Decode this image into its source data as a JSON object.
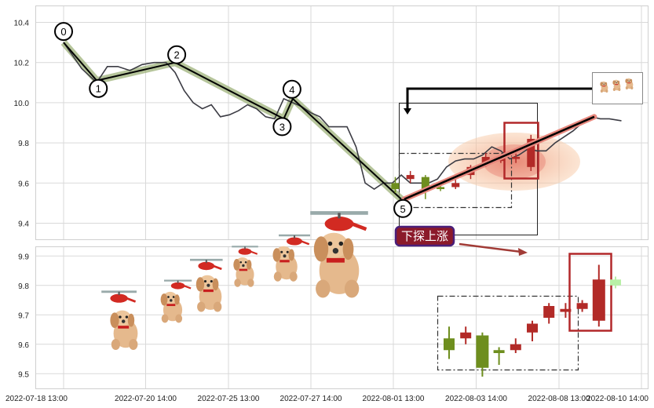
{
  "chart_data": [
    {
      "type": "line",
      "panel": "top",
      "ylim": [
        9.32,
        10.48
      ],
      "yticks": [
        9.4,
        9.6,
        9.8,
        10.0,
        10.2,
        10.4
      ],
      "grid": true,
      "series": [
        {
          "style": "dark-gray-line",
          "x": [
            0,
            0.6,
            1.1,
            1.45,
            1.8,
            2.2,
            2.6,
            3.0,
            3.4,
            3.7,
            4.0,
            4.3,
            4.6,
            4.9,
            5.2,
            5.5,
            5.8,
            6.1,
            6.4,
            6.7,
            7.0,
            7.3,
            7.6,
            7.9,
            8.2,
            8.5,
            8.8,
            9.1,
            9.4,
            9.7,
            10.0,
            10.3,
            10.6,
            10.9,
            11.2,
            11.5,
            11.8,
            12.1,
            12.4,
            12.7,
            13.0,
            13.3,
            13.6,
            13.9,
            14.2,
            14.5,
            14.8,
            15.1,
            15.4,
            15.7,
            16.0,
            16.3,
            16.6,
            16.9,
            17.2,
            17.5,
            17.8,
            18.1,
            18.5
          ],
          "y": [
            10.3,
            10.17,
            10.1,
            10.18,
            10.18,
            10.16,
            10.19,
            10.2,
            10.2,
            10.15,
            10.06,
            10.0,
            9.97,
            9.99,
            9.93,
            9.94,
            9.96,
            9.99,
            9.97,
            9.93,
            9.92,
            10.02,
            10.0,
            9.98,
            9.95,
            9.93,
            9.88,
            9.88,
            9.88,
            9.78,
            9.6,
            9.57,
            9.6,
            9.6,
            9.64,
            9.6,
            9.6,
            9.6,
            9.62,
            9.68,
            9.71,
            9.72,
            9.72,
            9.74,
            9.78,
            9.76,
            9.72,
            9.74,
            9.77,
            9.76,
            9.76,
            9.8,
            9.83,
            9.86,
            9.9,
            9.93,
            9.92,
            9.92,
            9.91
          ]
        },
        {
          "style": "wave-path-black-with-green-band",
          "points": [
            {
              "label": "0",
              "x": 0.0,
              "y": 10.3
            },
            {
              "label": "1",
              "x": 1.1,
              "y": 10.11
            },
            {
              "label": "2",
              "x": 3.7,
              "y": 10.2
            },
            {
              "label": "3",
              "x": 7.3,
              "y": 9.92
            },
            {
              "label": "4",
              "x": 7.6,
              "y": 10.02
            },
            {
              "label": "5",
              "x": 11.2,
              "y": 9.52
            }
          ]
        },
        {
          "style": "red-trend-line",
          "points": [
            {
              "x": 11.3,
              "y": 9.52
            },
            {
              "x": 17.6,
              "y": 9.93
            }
          ]
        }
      ],
      "candles_highlight": [
        {
          "x": 11.0,
          "open": 9.57,
          "close": 9.6,
          "high": 9.63,
          "low": 9.55,
          "color": "green"
        },
        {
          "x": 11.5,
          "open": 9.62,
          "close": 9.64,
          "high": 9.66,
          "low": 9.6,
          "color": "red"
        },
        {
          "x": 12.0,
          "open": 9.63,
          "close": 9.56,
          "high": 9.64,
          "low": 9.52,
          "color": "green"
        },
        {
          "x": 12.5,
          "open": 9.57,
          "close": 9.58,
          "high": 9.6,
          "low": 9.56,
          "color": "green"
        },
        {
          "x": 13.0,
          "open": 9.58,
          "close": 9.6,
          "high": 9.62,
          "low": 9.57,
          "color": "red"
        },
        {
          "x": 13.5,
          "open": 9.64,
          "close": 9.68,
          "high": 9.69,
          "low": 9.62,
          "color": "red"
        },
        {
          "x": 14.0,
          "open": 9.69,
          "close": 9.73,
          "high": 9.75,
          "low": 9.68,
          "color": "red"
        },
        {
          "x": 14.5,
          "open": 9.71,
          "close": 9.73,
          "high": 9.74,
          "low": 9.7,
          "color": "red"
        },
        {
          "x": 15.0,
          "open": 9.72,
          "close": 9.73,
          "high": 9.76,
          "low": 9.7,
          "color": "red"
        },
        {
          "x": 15.5,
          "open": 9.68,
          "close": 9.82,
          "high": 9.84,
          "low": 9.66,
          "color": "red"
        }
      ],
      "annotation_label": "下探上涨"
    },
    {
      "type": "candlestick",
      "panel": "bottom",
      "ylim": [
        9.45,
        9.93
      ],
      "yticks": [
        9.5,
        9.6,
        9.7,
        9.8,
        9.9
      ],
      "grid": true,
      "candles": [
        {
          "open": 9.58,
          "close": 9.62,
          "high": 9.66,
          "low": 9.55,
          "color": "green"
        },
        {
          "open": 9.62,
          "close": 9.64,
          "high": 9.66,
          "low": 9.6,
          "color": "red"
        },
        {
          "open": 9.63,
          "close": 9.52,
          "high": 9.64,
          "low": 9.49,
          "color": "green"
        },
        {
          "open": 9.57,
          "close": 9.58,
          "high": 9.59,
          "low": 9.53,
          "color": "green"
        },
        {
          "open": 9.58,
          "close": 9.6,
          "high": 9.62,
          "low": 9.57,
          "color": "red"
        },
        {
          "open": 9.64,
          "close": 9.67,
          "high": 9.68,
          "low": 9.61,
          "color": "red"
        },
        {
          "open": 9.69,
          "close": 9.73,
          "high": 9.74,
          "low": 9.67,
          "color": "red"
        },
        {
          "open": 9.71,
          "close": 9.72,
          "high": 9.74,
          "low": 9.69,
          "color": "red"
        },
        {
          "open": 9.72,
          "close": 9.74,
          "high": 9.75,
          "low": 9.71,
          "color": "red"
        },
        {
          "open": 9.68,
          "close": 9.82,
          "high": 9.87,
          "low": 9.66,
          "color": "red"
        },
        {
          "open": 9.8,
          "close": 9.82,
          "high": 9.83,
          "low": 9.79,
          "color": "lightgreen"
        }
      ]
    }
  ],
  "x_tick_labels": [
    "2022-07-18 13:00",
    "2022-07-20 14:00",
    "2022-07-25 13:00",
    "2022-07-27 14:00",
    "2022-08-01 13:00",
    "2022-08-03 14:00",
    "2022-08-08 13:00",
    "2022-08-10 14:00"
  ],
  "colors": {
    "gray_line": "#3c3c44",
    "wave_line": "#000000",
    "wave_band": "#9db27a",
    "trend": "#e8887e",
    "candle_red": "#b22a27",
    "candle_green": "#6e8e1e",
    "candle_lightgreen": "#b8f0a6",
    "label_bg": "#8b1a2a",
    "label_border": "#4a1f7a",
    "grid": "#d9d9d9",
    "axis": "#cccccc"
  },
  "decor": {
    "mascot": "puppy-helicopter-sticker"
  }
}
